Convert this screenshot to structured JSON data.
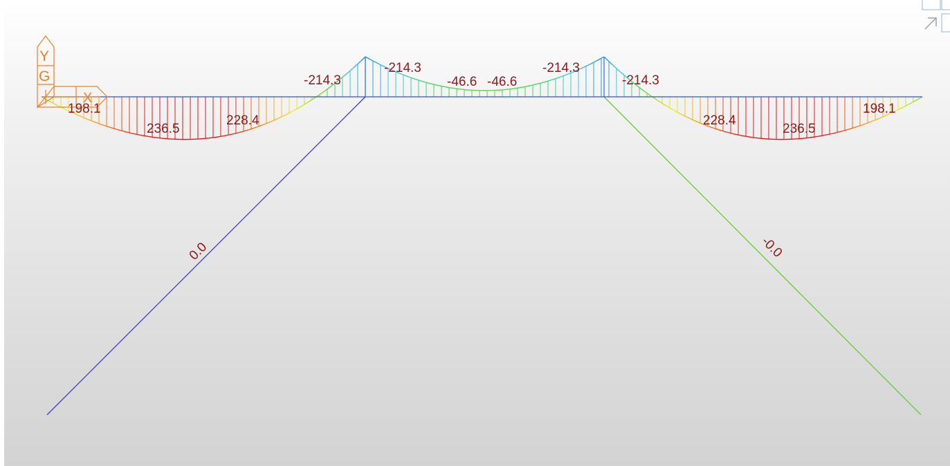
{
  "view": {
    "background_top": "#ffffff",
    "background_bottom": "#d3d3d3"
  },
  "axis_triad": {
    "labels": [
      "Y",
      "G",
      "X"
    ],
    "color": "#e8822a"
  },
  "diagram": {
    "label_color": "#8b1a1a",
    "beam_color": "#3355cc",
    "labels": [
      {
        "id": "left-end",
        "text": "198.1"
      },
      {
        "id": "left-span-max",
        "text": "236.5"
      },
      {
        "id": "left-span-mid",
        "text": "228.4"
      },
      {
        "id": "left-support-left",
        "text": "-214.3"
      },
      {
        "id": "left-support-right",
        "text": "-214.3"
      },
      {
        "id": "center-left",
        "text": "-46.6"
      },
      {
        "id": "center-right",
        "text": "-46.6"
      },
      {
        "id": "right-support-left",
        "text": "-214.3"
      },
      {
        "id": "right-support-right",
        "text": "-214.3"
      },
      {
        "id": "right-span-mid",
        "text": "228.4"
      },
      {
        "id": "right-span-max",
        "text": "236.5"
      },
      {
        "id": "right-end",
        "text": "198.1"
      },
      {
        "id": "left-column",
        "text": "0.0"
      },
      {
        "id": "right-column",
        "text": "-0.0"
      }
    ],
    "colors": {
      "left_column": "#3a3acc",
      "right_column": "#66cc33"
    }
  }
}
